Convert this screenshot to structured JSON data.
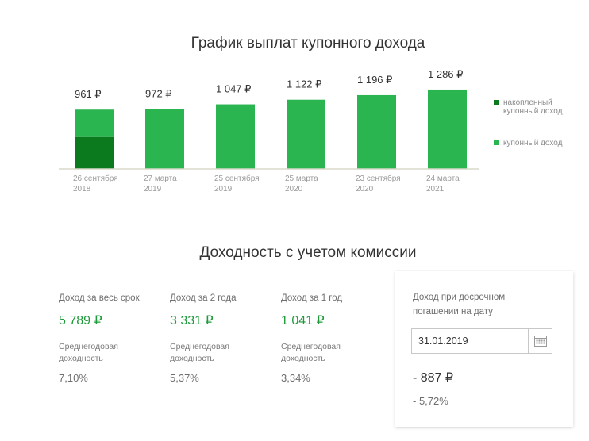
{
  "chart_data": {
    "type": "bar",
    "title": "График выплат купонного дохода",
    "categories": [
      [
        "26 сентября",
        "2018"
      ],
      [
        "27 марта",
        "2019"
      ],
      [
        "25 сентября",
        "2019"
      ],
      [
        "25 марта",
        "2020"
      ],
      [
        "23 сентября",
        "2020"
      ],
      [
        "24 марта",
        "2021"
      ]
    ],
    "series": [
      {
        "name": "накопленный купонный доход",
        "values": [
          518,
          0,
          0,
          0,
          0,
          0
        ],
        "color": "#0b7a1e"
      },
      {
        "name": "купонный доход",
        "values": [
          443,
          972,
          1047,
          1122,
          1196,
          1286
        ],
        "color": "#2bb550"
      }
    ],
    "totals": [
      961,
      972,
      1047,
      1122,
      1196,
      1286
    ],
    "data_labels": [
      "961 ₽",
      "972 ₽",
      "1 047 ₽",
      "1 122 ₽",
      "1 196 ₽",
      "1 286 ₽"
    ],
    "legend": [
      {
        "label": "накопленный купонный доход",
        "color": "#0b7a1e"
      },
      {
        "label": "купонный доход",
        "color": "#2bb550"
      }
    ],
    "legend_position": "right",
    "ylim": [
      0,
      1400
    ],
    "grid": false
  },
  "yield_section": {
    "title": "Доходность с учетом комиссии",
    "metrics": [
      {
        "label": "Доход за весь срок",
        "value": "5 789 ₽",
        "sub_label": "Среднегодовая доходность",
        "sub_value": "7,10%"
      },
      {
        "label": "Доход за 2 года",
        "value": "3 331 ₽",
        "sub_label": "Среднегодовая доходность",
        "sub_value": "5,37%"
      },
      {
        "label": "Доход за 1 год",
        "value": "1 041 ₽",
        "sub_label": "Среднегодовая доходность",
        "sub_value": "3,34%"
      }
    ],
    "early_card": {
      "label": "Доход при досрочном погашении на дату",
      "date": "31.01.2019",
      "calendar_icon": "calendar-icon",
      "value": "- 887 ₽",
      "percent": "- 5,72%"
    }
  }
}
